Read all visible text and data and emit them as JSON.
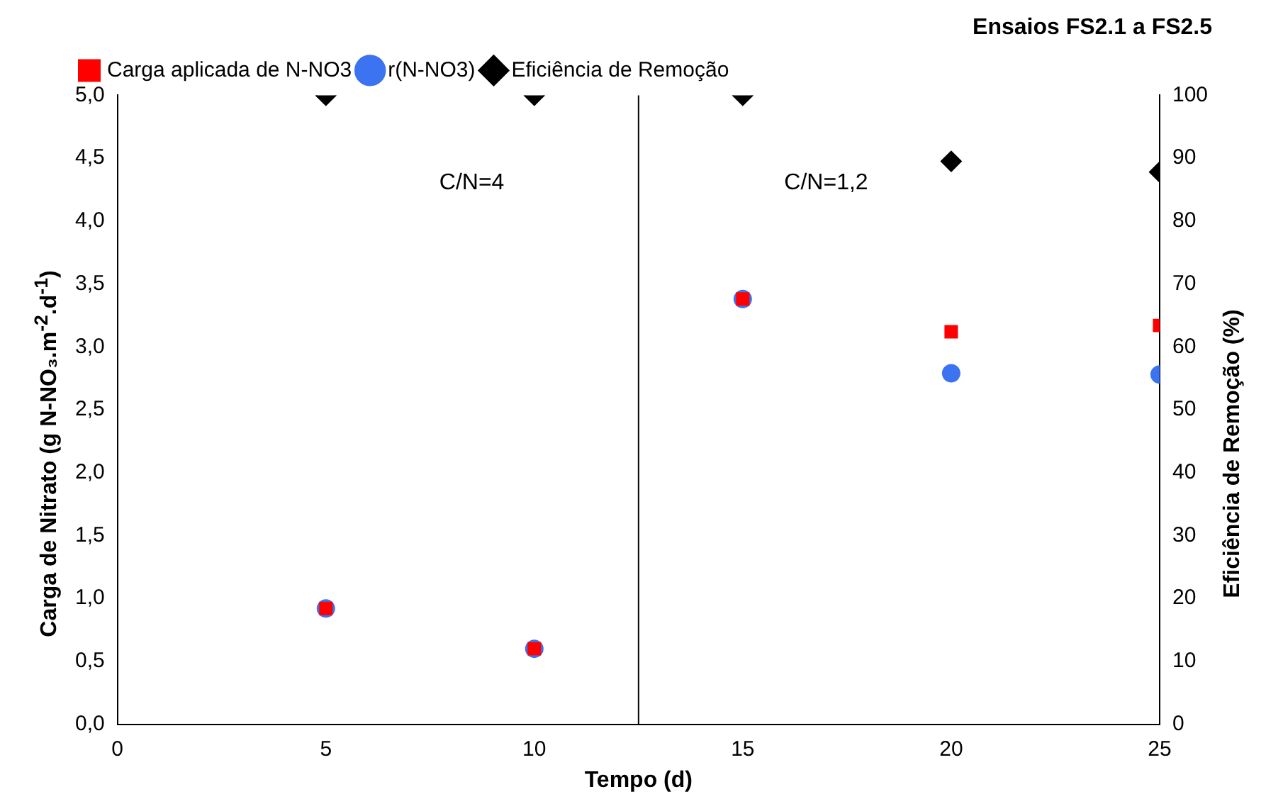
{
  "chart_data": {
    "type": "scatter",
    "title": "Ensaios FS2.1 a FS2.5",
    "xlabel": "Tempo (d)",
    "ylabel": "Carga de Nitrato (g N-NO₃.m$^{-2}$.d$^{-1}$)",
    "y2label": "Eficiência de Remoção (%)",
    "x": [
      5,
      10,
      15,
      20,
      25
    ],
    "series": [
      {
        "name": "Carga aplicada de N-NO3",
        "color": "#ff0000",
        "marker": "square",
        "values": [
          0.92,
          0.6,
          3.38,
          3.12,
          3.17
        ]
      },
      {
        "name": "r(N-NO3)",
        "color": "#3b73f0",
        "marker": "circle",
        "values": [
          0.92,
          0.6,
          3.38,
          2.79,
          2.78
        ]
      },
      {
        "name": "Eficiência de Remoção",
        "color": "#000000",
        "marker": "diamond",
        "axis": "y2",
        "values": [
          100,
          100,
          100,
          89.5,
          87.8
        ]
      }
    ],
    "xlim": [
      0,
      25
    ],
    "xticks": [
      0,
      5,
      10,
      15,
      20,
      25
    ],
    "ylim": [
      0,
      5
    ],
    "yticks": [
      {
        "value": 0,
        "label": "0,0"
      },
      {
        "value": 0.5,
        "label": "0,5"
      },
      {
        "value": 1,
        "label": "1,0"
      },
      {
        "value": 1.5,
        "label": "1,5"
      },
      {
        "value": 2,
        "label": "2,0"
      },
      {
        "value": 2.5,
        "label": "2,5"
      },
      {
        "value": 3,
        "label": "3,0"
      },
      {
        "value": 3.5,
        "label": "3,5"
      },
      {
        "value": 4,
        "label": "4,0"
      },
      {
        "value": 4.5,
        "label": "4,5"
      },
      {
        "value": 5,
        "label": "5,0"
      }
    ],
    "y2lim": [
      0,
      100
    ],
    "y2ticks": [
      0,
      10,
      20,
      30,
      40,
      50,
      60,
      70,
      80,
      90,
      100
    ],
    "ref_lines": [
      {
        "axis": "x",
        "value": 12.5,
        "color": "#000000"
      }
    ],
    "annotations": [
      "C/N=4",
      "C/N=1,2"
    ],
    "grid": false,
    "legend": "top left"
  }
}
